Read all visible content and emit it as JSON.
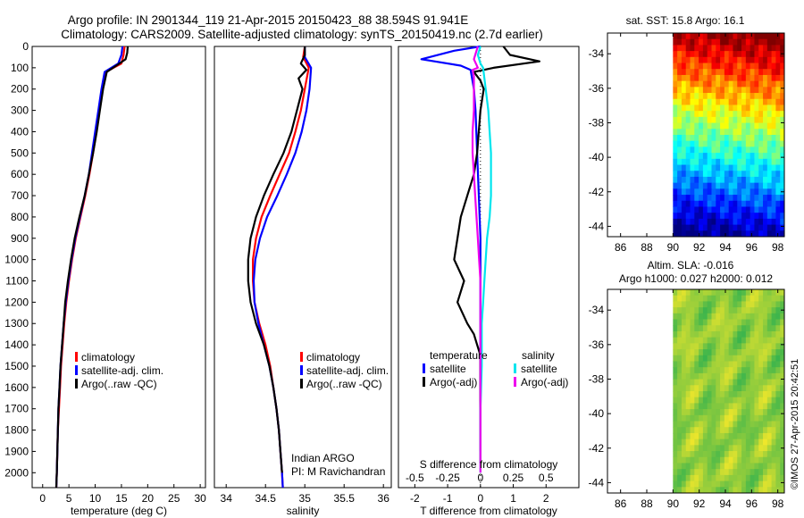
{
  "header": {
    "title_line1": "Argo profile: IN 2901344_119 21-Apr-2015 20150423_88 38.594S 91.941E",
    "title_line2": "Climatology: CARS2009. Satellite-adjusted climatology: synTS_20150419.nc (2.7d earlier)"
  },
  "credit": "©IMOS 27-Apr-2015 20:42:51",
  "colors": {
    "climatology": "#ff0000",
    "satellite_adj": "#0000ff",
    "argo": "#000000",
    "sat_salinity": "#00e5ee",
    "argo_adj_salinity": "#ee00ee"
  },
  "chart_data": [
    {
      "id": "temperature",
      "type": "line",
      "xlabel": "temperature (deg C)",
      "ylabel": "",
      "xlim": [
        -2,
        31
      ],
      "ylim": [
        2070,
        0
      ],
      "xticks": [
        0,
        5,
        10,
        15,
        20,
        25,
        30
      ],
      "yticks": [
        0,
        100,
        200,
        300,
        400,
        500,
        600,
        700,
        800,
        900,
        1000,
        1100,
        1200,
        1300,
        1400,
        1500,
        1600,
        1700,
        1800,
        1900,
        2000
      ],
      "legend": [
        "climatology",
        "satellite-adj. clim.",
        "Argo(..raw -QC)"
      ],
      "series": [
        {
          "name": "climatology",
          "color": "#ff0000",
          "points": [
            [
              15.6,
              0
            ],
            [
              15.4,
              40
            ],
            [
              15,
              80
            ],
            [
              12,
              120
            ],
            [
              11.4,
              200
            ],
            [
              10.8,
              300
            ],
            [
              10.2,
              400
            ],
            [
              9.6,
              500
            ],
            [
              8.9,
              600
            ],
            [
              8.1,
              700
            ],
            [
              7.2,
              800
            ],
            [
              6.3,
              900
            ],
            [
              5.6,
              1000
            ],
            [
              5,
              1100
            ],
            [
              4.5,
              1200
            ],
            [
              4.1,
              1300
            ],
            [
              3.8,
              1400
            ],
            [
              3.5,
              1500
            ],
            [
              3.3,
              1600
            ],
            [
              3.1,
              1700
            ],
            [
              2.9,
              1800
            ],
            [
              2.8,
              1900
            ],
            [
              2.7,
              2000
            ],
            [
              2.6,
              2070
            ]
          ]
        },
        {
          "name": "satellite-adj. clim.",
          "color": "#0000ff",
          "points": [
            [
              15.2,
              0
            ],
            [
              15,
              40
            ],
            [
              14.4,
              80
            ],
            [
              11.8,
              120
            ],
            [
              11.2,
              200
            ],
            [
              10.6,
              300
            ],
            [
              10,
              400
            ],
            [
              9.4,
              500
            ],
            [
              8.8,
              600
            ],
            [
              8,
              700
            ],
            [
              7.1,
              800
            ],
            [
              6.2,
              900
            ],
            [
              5.5,
              1000
            ],
            [
              4.9,
              1100
            ],
            [
              4.4,
              1200
            ],
            [
              4,
              1300
            ],
            [
              3.7,
              1400
            ],
            [
              3.4,
              1500
            ],
            [
              3.2,
              1600
            ],
            [
              3,
              1700
            ],
            [
              2.9,
              1800
            ],
            [
              2.8,
              1900
            ],
            [
              2.7,
              2000
            ],
            [
              2.6,
              2070
            ]
          ]
        },
        {
          "name": "Argo(..raw -QC)",
          "color": "#000000",
          "points": [
            [
              16.2,
              0
            ],
            [
              16.1,
              30
            ],
            [
              15.8,
              60
            ],
            [
              14,
              90
            ],
            [
              12.2,
              120
            ],
            [
              11.5,
              200
            ],
            [
              10.9,
              300
            ],
            [
              10.3,
              400
            ],
            [
              9.6,
              500
            ],
            [
              8.8,
              600
            ],
            [
              8,
              700
            ],
            [
              7,
              800
            ],
            [
              6.1,
              900
            ],
            [
              5.4,
              1000
            ],
            [
              4.8,
              1100
            ],
            [
              4.3,
              1200
            ],
            [
              4,
              1300
            ],
            [
              3.7,
              1400
            ],
            [
              3.4,
              1500
            ],
            [
              3.2,
              1600
            ],
            [
              3,
              1700
            ],
            [
              2.9,
              1800
            ],
            [
              2.8,
              1900
            ],
            [
              2.7,
              2000
            ],
            [
              2.6,
              2070
            ]
          ]
        }
      ]
    },
    {
      "id": "salinity",
      "type": "line",
      "xlabel": "salinity",
      "ylabel": "",
      "xlim": [
        33.85,
        36.1
      ],
      "ylim": [
        2070,
        0
      ],
      "xticks": [
        34,
        34.5,
        35,
        35.5,
        36
      ],
      "xticklabels": [
        "34",
        "34.5",
        "35",
        "35.5",
        "36"
      ],
      "legend": [
        "climatology",
        "satellite-adj. clim.",
        "Argo(..raw -QC)"
      ],
      "annotation": [
        "Indian ARGO",
        "PI: M Ravichandran"
      ],
      "series": [
        {
          "name": "climatology",
          "color": "#ff0000",
          "points": [
            [
              35,
              0
            ],
            [
              34.98,
              50
            ],
            [
              35.05,
              100
            ],
            [
              35,
              200
            ],
            [
              34.95,
              300
            ],
            [
              34.88,
              400
            ],
            [
              34.8,
              500
            ],
            [
              34.68,
              600
            ],
            [
              34.56,
              700
            ],
            [
              34.45,
              800
            ],
            [
              34.38,
              900
            ],
            [
              34.34,
              1000
            ],
            [
              34.34,
              1100
            ],
            [
              34.36,
              1200
            ],
            [
              34.42,
              1300
            ],
            [
              34.5,
              1400
            ],
            [
              34.56,
              1500
            ],
            [
              34.6,
              1600
            ],
            [
              34.64,
              1700
            ],
            [
              34.67,
              1800
            ],
            [
              34.69,
              1900
            ],
            [
              34.71,
              2000
            ],
            [
              34.72,
              2070
            ]
          ]
        },
        {
          "name": "satellite-adj. clim.",
          "color": "#0000ff",
          "points": [
            [
              35,
              0
            ],
            [
              35,
              50
            ],
            [
              35.08,
              100
            ],
            [
              35.06,
              200
            ],
            [
              35.02,
              300
            ],
            [
              34.96,
              400
            ],
            [
              34.88,
              500
            ],
            [
              34.77,
              600
            ],
            [
              34.65,
              700
            ],
            [
              34.52,
              800
            ],
            [
              34.43,
              900
            ],
            [
              34.37,
              1000
            ],
            [
              34.35,
              1100
            ],
            [
              34.36,
              1200
            ],
            [
              34.41,
              1300
            ],
            [
              34.48,
              1400
            ],
            [
              34.55,
              1500
            ],
            [
              34.6,
              1600
            ],
            [
              34.64,
              1700
            ],
            [
              34.67,
              1800
            ],
            [
              34.69,
              1900
            ],
            [
              34.71,
              2000
            ],
            [
              34.72,
              2070
            ]
          ]
        },
        {
          "name": "Argo(..raw -QC)",
          "color": "#000000",
          "points": [
            [
              35,
              0
            ],
            [
              35,
              40
            ],
            [
              34.95,
              80
            ],
            [
              35.02,
              110
            ],
            [
              34.92,
              150
            ],
            [
              34.97,
              200
            ],
            [
              34.9,
              300
            ],
            [
              34.83,
              400
            ],
            [
              34.73,
              500
            ],
            [
              34.6,
              600
            ],
            [
              34.48,
              700
            ],
            [
              34.38,
              800
            ],
            [
              34.31,
              900
            ],
            [
              34.28,
              1000
            ],
            [
              34.28,
              1100
            ],
            [
              34.31,
              1200
            ],
            [
              34.38,
              1300
            ],
            [
              34.48,
              1400
            ],
            [
              34.55,
              1500
            ],
            [
              34.6,
              1600
            ],
            [
              34.64,
              1700
            ],
            [
              34.67,
              1800
            ],
            [
              34.69,
              1900
            ],
            [
              34.71,
              2000
            ]
          ]
        }
      ]
    },
    {
      "id": "difference",
      "type": "line",
      "xlabel": "T difference from climatology",
      "x2label": "S difference from climatology",
      "xlim": [
        -2.5,
        3
      ],
      "x2lim": [
        -0.625,
        0.75
      ],
      "ylim": [
        2070,
        0
      ],
      "xticks": [
        -2,
        -1,
        0,
        1,
        2
      ],
      "x2ticks": [
        -0.5,
        -0.25,
        0,
        0.25,
        0.5
      ],
      "x2ticklabels": [
        "-0.5",
        "-0.25",
        "0",
        "0.25",
        "0.5"
      ],
      "legend_titles": [
        "temperature",
        "salinity"
      ],
      "legend": [
        "satellite",
        "Argo(-adj)",
        "satellite",
        "Argo(-adj)"
      ],
      "series": [
        {
          "name": "temperature satellite",
          "axis": "T",
          "color": "#0000ff",
          "points": [
            [
              0,
              0
            ],
            [
              -0.8,
              20
            ],
            [
              -1.8,
              60
            ],
            [
              -0.6,
              90
            ],
            [
              -0.3,
              110
            ],
            [
              -0.2,
              200
            ],
            [
              -0.15,
              300
            ],
            [
              -0.1,
              500
            ],
            [
              -0.05,
              700
            ],
            [
              0,
              900
            ],
            [
              0,
              1100
            ],
            [
              0,
              1300
            ],
            [
              0,
              1500
            ],
            [
              0,
              1700
            ],
            [
              0,
              1900
            ]
          ]
        },
        {
          "name": "temperature Argo(-adj)",
          "axis": "T",
          "color": "#000000",
          "points": [
            [
              0.7,
              0
            ],
            [
              0.9,
              40
            ],
            [
              1.8,
              70
            ],
            [
              0.4,
              100
            ],
            [
              -0.2,
              120
            ],
            [
              0,
              160
            ],
            [
              0.1,
              200
            ],
            [
              0,
              300
            ],
            [
              -0.1,
              500
            ],
            [
              -0.2,
              600
            ],
            [
              -0.4,
              700
            ],
            [
              -0.6,
              800
            ],
            [
              -0.7,
              900
            ],
            [
              -0.8,
              1000
            ],
            [
              -0.5,
              1100
            ],
            [
              -0.7,
              1200
            ],
            [
              -0.4,
              1300
            ],
            [
              -0.2,
              1350
            ],
            [
              -0.1,
              1400
            ],
            [
              0,
              1450
            ],
            [
              0,
              1600
            ],
            [
              0,
              1800
            ],
            [
              0,
              1950
            ]
          ]
        },
        {
          "name": "salinity satellite",
          "axis": "S",
          "color": "#00e5ee",
          "points": [
            [
              0,
              0
            ],
            [
              -0.02,
              40
            ],
            [
              0,
              80
            ],
            [
              0.02,
              100
            ],
            [
              0.04,
              200
            ],
            [
              0.06,
              300
            ],
            [
              0.07,
              400
            ],
            [
              0.08,
              500
            ],
            [
              0.08,
              600
            ],
            [
              0.08,
              700
            ],
            [
              0.07,
              800
            ],
            [
              0.05,
              900
            ],
            [
              0.04,
              1000
            ],
            [
              0.03,
              1100
            ],
            [
              0.02,
              1200
            ],
            [
              0.01,
              1300
            ],
            [
              0.01,
              1500
            ],
            [
              0,
              1700
            ],
            [
              0,
              1900
            ],
            [
              0,
              2000
            ]
          ]
        },
        {
          "name": "salinity Argo(-adj)",
          "axis": "S",
          "color": "#ee00ee",
          "points": [
            [
              -0.02,
              0
            ],
            [
              -0.05,
              60
            ],
            [
              -0.02,
              100
            ],
            [
              -0.06,
              110
            ],
            [
              -0.05,
              140
            ],
            [
              -0.05,
              200
            ],
            [
              -0.05,
              300
            ],
            [
              -0.06,
              400
            ],
            [
              -0.06,
              500
            ],
            [
              -0.05,
              600
            ],
            [
              -0.04,
              700
            ],
            [
              -0.03,
              800
            ],
            [
              -0.02,
              900
            ],
            [
              -0.01,
              1000
            ],
            [
              0,
              1100
            ],
            [
              0,
              1300
            ],
            [
              0,
              1500
            ],
            [
              0,
              1700
            ],
            [
              0,
              1900
            ],
            [
              0,
              2000
            ]
          ]
        }
      ]
    },
    {
      "id": "sst_map",
      "type": "heatmap",
      "title": "sat. SST: 15.8 Argo: 16.1",
      "xticks": [
        86,
        88,
        90,
        92,
        94,
        96,
        98
      ],
      "yticks": [
        -34,
        -36,
        -38,
        -40,
        -42,
        -44
      ],
      "xlim": [
        85,
        98.5
      ],
      "ylim": [
        -44.6,
        -32.8
      ],
      "data_lon_range": [
        90,
        98.5
      ],
      "palette": "jet"
    },
    {
      "id": "sla_map",
      "type": "heatmap",
      "title_line1": "Altim. SLA: -0.016",
      "title_line2": "Argo h1000: 0.027 h2000: 0.012",
      "xticks": [
        86,
        88,
        90,
        92,
        94,
        96,
        98
      ],
      "yticks": [
        -34,
        -36,
        -38,
        -40,
        -42,
        -44
      ],
      "xlim": [
        85,
        98.5
      ],
      "ylim": [
        -44.6,
        -32.8
      ],
      "data_lon_range": [
        90,
        98.5
      ],
      "palette": "green-yellow"
    }
  ]
}
